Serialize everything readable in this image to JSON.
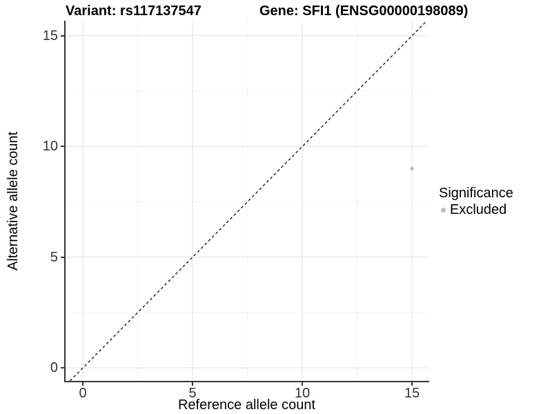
{
  "chart_data": {
    "type": "scatter",
    "title_left": "Variant: rs117137547",
    "title_right": "Gene: SFI1 (ENSG00000198089)",
    "xlabel": "Reference allele count",
    "ylabel": "Alternative allele count",
    "xlim": [
      -0.79,
      15.72
    ],
    "ylim": [
      -0.59,
      15.68
    ],
    "xticks": [
      0,
      5,
      10,
      15
    ],
    "yticks": [
      0,
      5,
      10,
      15
    ],
    "minor_ticks": [
      2.5,
      7.5,
      12.5
    ],
    "grid": "major and minor gridlines on white background",
    "identity_line": {
      "style": "dashed",
      "x1": -0.59,
      "y1": -0.59,
      "x2": 15.68,
      "y2": 15.68
    },
    "series": [
      {
        "name": "Excluded",
        "color": "#bdbdbd",
        "points": [
          {
            "x": 15,
            "y": 9
          }
        ]
      }
    ],
    "legend": {
      "title": "Significance",
      "position": "right",
      "items": [
        {
          "label": "Excluded",
          "color": "#bdbdbd"
        }
      ]
    },
    "colors": {
      "grid_major": "#e6e6e6",
      "grid_minor": "#f2f2f2",
      "axis_line": "#333333",
      "tick_label": "#333333",
      "dashed_line": "#1a1a1a",
      "point": "#bdbdbd"
    }
  }
}
